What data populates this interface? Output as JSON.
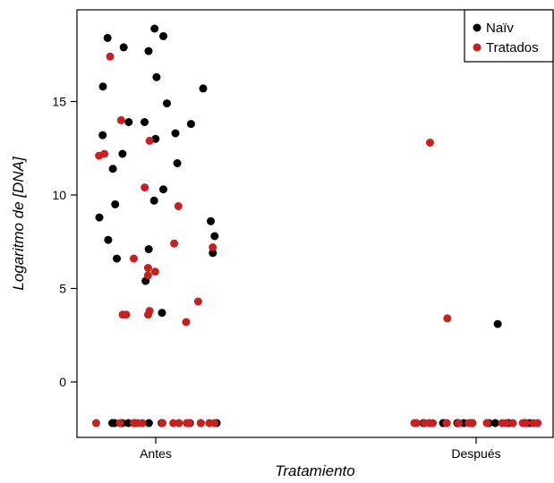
{
  "chart_data": {
    "type": "scatter",
    "title": "",
    "xlabel": "Tratamiento",
    "ylabel": "Logaritmo de [DNA]",
    "categories": [
      "Antes",
      "Después"
    ],
    "ylim": [
      -3,
      20
    ],
    "yticks": [
      0,
      5,
      10,
      15
    ],
    "grid": false,
    "legend_position": "top-right",
    "series": [
      {
        "name": "Naïv",
        "color": "#000000",
        "points": [
          {
            "x": "Antes",
            "y": 18.9
          },
          {
            "x": "Antes",
            "y": 18.5
          },
          {
            "x": "Antes",
            "y": 18.4
          },
          {
            "x": "Antes",
            "y": 17.9
          },
          {
            "x": "Antes",
            "y": 17.7
          },
          {
            "x": "Antes",
            "y": 16.3
          },
          {
            "x": "Antes",
            "y": 15.8
          },
          {
            "x": "Antes",
            "y": 15.7
          },
          {
            "x": "Antes",
            "y": 14.9
          },
          {
            "x": "Antes",
            "y": 13.9
          },
          {
            "x": "Antes",
            "y": 13.9
          },
          {
            "x": "Antes",
            "y": 13.8
          },
          {
            "x": "Antes",
            "y": 13.3
          },
          {
            "x": "Antes",
            "y": 13.2
          },
          {
            "x": "Antes",
            "y": 13.0
          },
          {
            "x": "Antes",
            "y": 12.2
          },
          {
            "x": "Antes",
            "y": 11.7
          },
          {
            "x": "Antes",
            "y": 11.4
          },
          {
            "x": "Antes",
            "y": 10.3
          },
          {
            "x": "Antes",
            "y": 9.7
          },
          {
            "x": "Antes",
            "y": 9.5
          },
          {
            "x": "Antes",
            "y": 8.8
          },
          {
            "x": "Antes",
            "y": 8.6
          },
          {
            "x": "Antes",
            "y": 7.8
          },
          {
            "x": "Antes",
            "y": 7.6
          },
          {
            "x": "Antes",
            "y": 7.1
          },
          {
            "x": "Antes",
            "y": 6.9
          },
          {
            "x": "Antes",
            "y": 6.6
          },
          {
            "x": "Antes",
            "y": 5.4
          },
          {
            "x": "Antes",
            "y": 3.7
          },
          {
            "x": "Después",
            "y": 3.1
          }
        ],
        "baseline_count": {
          "Antes": 9,
          "Después": 12
        },
        "baseline_value": -2.2
      },
      {
        "name": "Tratados",
        "color": "#c62020",
        "points": [
          {
            "x": "Antes",
            "y": 17.4
          },
          {
            "x": "Antes",
            "y": 14.0
          },
          {
            "x": "Antes",
            "y": 12.9
          },
          {
            "x": "Antes",
            "y": 12.2
          },
          {
            "x": "Antes",
            "y": 12.1
          },
          {
            "x": "Antes",
            "y": 10.4
          },
          {
            "x": "Antes",
            "y": 9.4
          },
          {
            "x": "Antes",
            "y": 7.4
          },
          {
            "x": "Antes",
            "y": 7.2
          },
          {
            "x": "Antes",
            "y": 6.6
          },
          {
            "x": "Antes",
            "y": 6.1
          },
          {
            "x": "Antes",
            "y": 5.9
          },
          {
            "x": "Antes",
            "y": 5.7
          },
          {
            "x": "Antes",
            "y": 4.3
          },
          {
            "x": "Antes",
            "y": 3.8
          },
          {
            "x": "Antes",
            "y": 3.6
          },
          {
            "x": "Antes",
            "y": 3.6
          },
          {
            "x": "Antes",
            "y": 3.6
          },
          {
            "x": "Antes",
            "y": 3.2
          },
          {
            "x": "Después",
            "y": 12.8
          },
          {
            "x": "Después",
            "y": 3.4
          }
        ],
        "baseline_count": {
          "Antes": 14,
          "Después": 20
        },
        "baseline_value": -2.2
      }
    ]
  }
}
